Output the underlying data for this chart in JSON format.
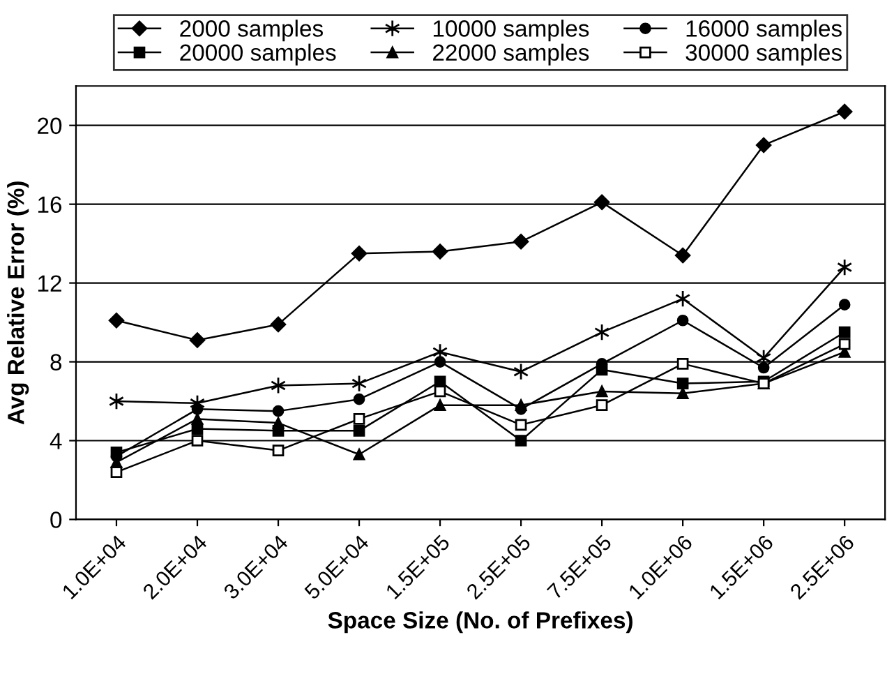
{
  "chart_data": {
    "type": "line",
    "xlabel": "Space Size (No. of Prefixes)",
    "ylabel": "Avg Relative Error (%)",
    "categories": [
      "1.0E+04",
      "2.0E+04",
      "3.0E+04",
      "5.0E+04",
      "1.5E+05",
      "2.5E+05",
      "7.5E+05",
      "1.0E+06",
      "1.5E+06",
      "2.5E+06"
    ],
    "series": [
      {
        "name": "2000 samples",
        "color": "#000000",
        "marker": "diamond",
        "values": [
          10.1,
          9.1,
          9.9,
          13.5,
          13.6,
          14.1,
          16.1,
          13.4,
          19.0,
          20.7
        ]
      },
      {
        "name": "10000 samples",
        "color": "#000000",
        "marker": "cross",
        "values": [
          6.0,
          5.9,
          6.8,
          6.9,
          8.5,
          7.5,
          9.5,
          11.2,
          8.2,
          12.8
        ]
      },
      {
        "name": "16000 samples",
        "color": "#000000",
        "marker": "circle",
        "values": [
          3.2,
          5.6,
          5.5,
          6.1,
          8.0,
          5.6,
          7.9,
          10.1,
          7.7,
          10.9
        ]
      },
      {
        "name": "20000 samples",
        "color": "#000000",
        "marker": "square",
        "values": [
          3.4,
          4.6,
          4.5,
          4.5,
          7.0,
          4.0,
          7.6,
          6.9,
          7.0,
          9.5
        ]
      },
      {
        "name": "22000 samples",
        "color": "#000000",
        "marker": "triangle",
        "values": [
          2.9,
          5.1,
          4.9,
          3.3,
          5.8,
          5.8,
          6.5,
          6.4,
          6.9,
          8.5
        ]
      },
      {
        "name": "30000 samples",
        "color": "#000000",
        "marker": "square",
        "values": [
          2.4,
          4.0,
          3.5,
          5.1,
          6.5,
          4.8,
          5.8,
          7.9,
          6.9,
          8.9
        ]
      }
    ],
    "ylim": [
      0,
      22
    ],
    "yticks": [
      0,
      4,
      8,
      12,
      16,
      20
    ],
    "grid": "y",
    "legend": "top",
    "line_style": "solid"
  }
}
